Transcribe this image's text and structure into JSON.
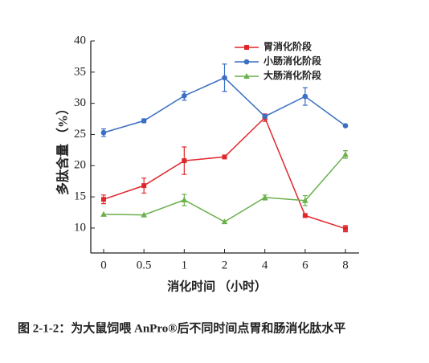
{
  "chart_data": {
    "type": "line",
    "title": "图 2-1-2：为大鼠饲喂 AnPro®后不同时间点胃和肠消化肽水平",
    "x_label": "消化时间 （小时）",
    "y_label": "多肽含量 （%）",
    "categories": [
      "0",
      "0.5",
      "1",
      "2",
      "4",
      "6",
      "8"
    ],
    "ylim": [
      6,
      40
    ],
    "yticks": [
      10,
      15,
      20,
      25,
      30,
      35,
      40
    ],
    "series": [
      {
        "name": "胃消化阶段",
        "color": "#e0262b",
        "marker": "square",
        "values": [
          14.6,
          16.8,
          20.8,
          21.4,
          27.7,
          12.0,
          9.9
        ],
        "errors": [
          0.7,
          1.2,
          2.2,
          null,
          0.6,
          null,
          0.5
        ]
      },
      {
        "name": "小肠消化阶段",
        "color": "#3a6fc4",
        "marker": "circle",
        "values": [
          25.3,
          27.2,
          31.2,
          34.1,
          27.9,
          31.1,
          26.4
        ],
        "errors": [
          0.6,
          0.3,
          0.7,
          2.2,
          null,
          1.4,
          null
        ]
      },
      {
        "name": "大肠消化阶段",
        "color": "#6ab04c",
        "marker": "triangle",
        "values": [
          12.2,
          12.1,
          14.5,
          11.0,
          14.9,
          14.4,
          21.8
        ],
        "errors": [
          null,
          null,
          0.9,
          null,
          0.4,
          0.8,
          0.6
        ]
      }
    ]
  }
}
